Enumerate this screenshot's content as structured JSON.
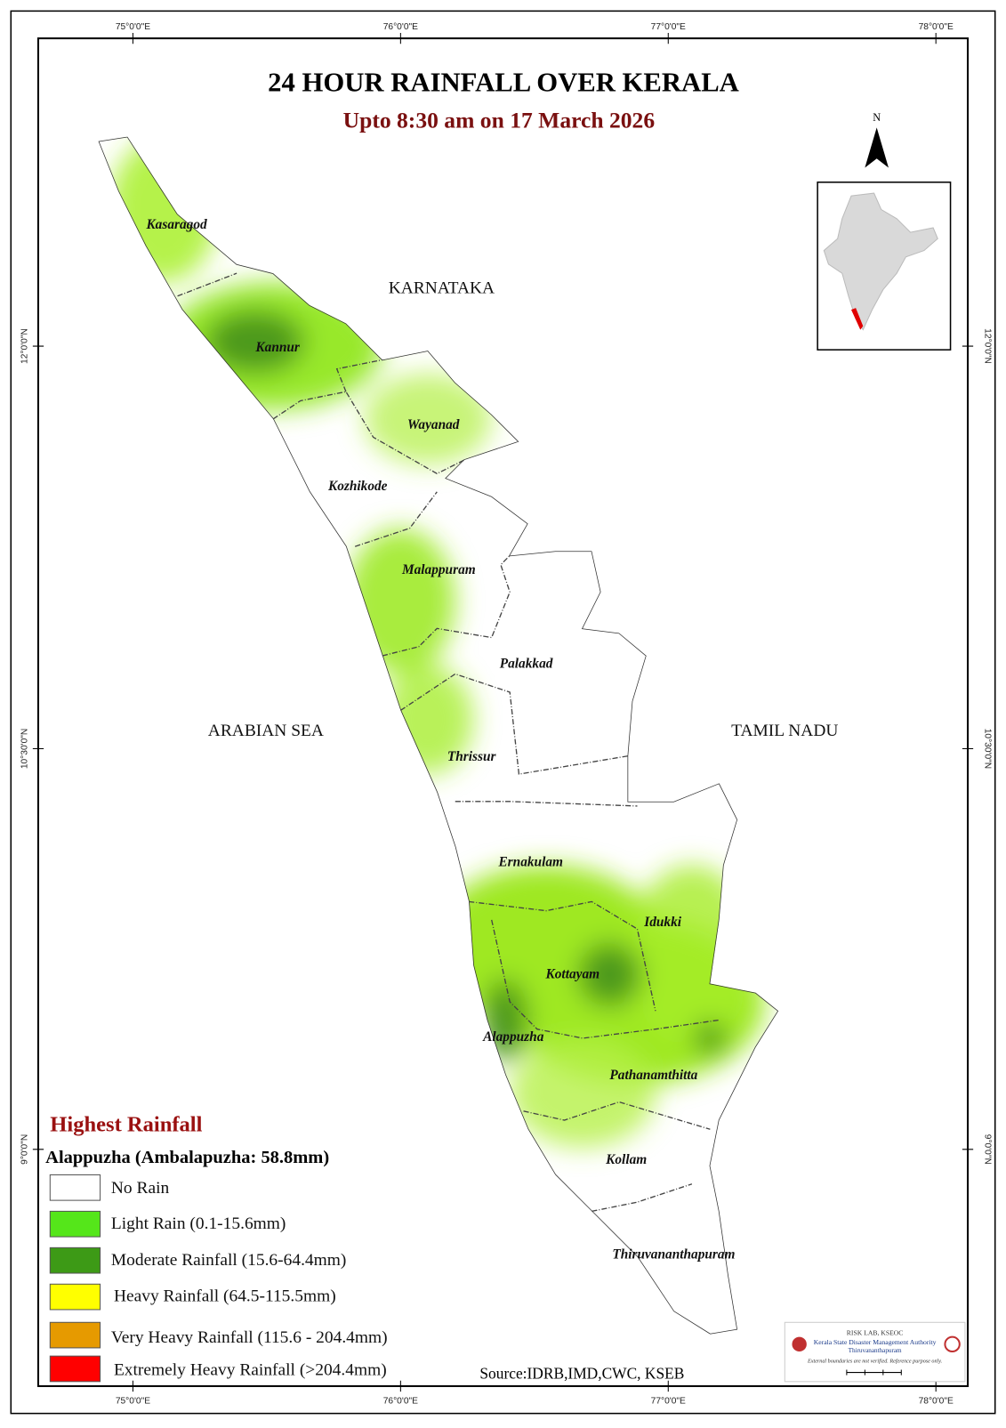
{
  "header": {
    "title": "24 HOUR RAINFALL OVER KERALA",
    "subtitle": "Upto 8:30 am on 17 March 2026"
  },
  "north_arrow": "N",
  "graticule": {
    "longitudes": [
      "75°0'0\"E",
      "76°0'0\"E",
      "77°0'0\"E",
      "78°0'0\"E"
    ],
    "latitudes": [
      "12°0'0\"N",
      "10°30'0\"N",
      "9°0'0\"N"
    ]
  },
  "regions": {
    "north": "KARNATAKA",
    "west": "ARABIAN SEA",
    "east": "TAMIL NADU"
  },
  "districts": [
    "Kasaragod",
    "Kannur",
    "Wayanad",
    "Kozhikode",
    "Malappuram",
    "Palakkad",
    "Thrissur",
    "Ernakulam",
    "Idukki",
    "Kottayam",
    "Alappuzha",
    "Pathanamthitta",
    "Kollam",
    "Thiruvananthapuram"
  ],
  "highest": {
    "heading": "Highest Rainfall",
    "text": "Alappuzha (Ambalapuzha: 58.8mm)"
  },
  "legend": [
    "No Rain",
    "Light Rain (0.1-15.6mm)",
    "Moderate Rainfall (15.6-64.4mm)",
    "Heavy Rainfall (64.5-115.5mm)",
    "Very Heavy Rainfall (115.6 - 204.4mm)",
    "Extremely Heavy Rainfall (>204.4mm)"
  ],
  "source": "Source:IDRB,IMD,CWC, KSEB",
  "logo": {
    "line1": "RISK LAB, KSEOC",
    "line2": "Kerala State Disaster Management Authority",
    "line3": "Thiruvananthapuram",
    "note": "External boundaries are not verified. Reference purpose only."
  }
}
